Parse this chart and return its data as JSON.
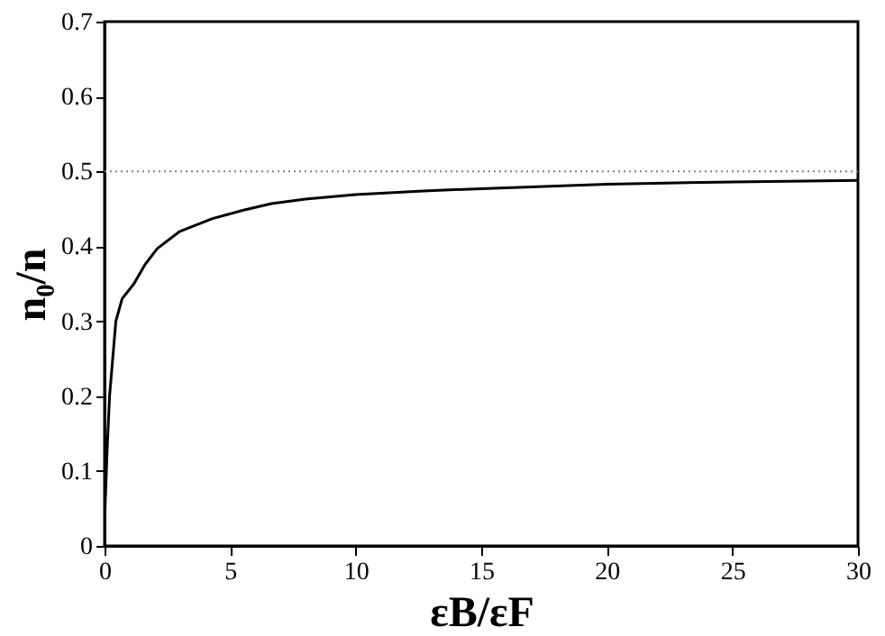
{
  "chart_data": {
    "type": "line",
    "xlabel": "εB/εF",
    "ylabel": "n₀/n",
    "x": [
      0.02,
      0.1,
      0.2,
      0.45,
      0.7,
      1.17,
      1.6,
      2.1,
      3,
      4.3,
      5.5,
      6.65,
      8,
      10,
      12.7,
      15,
      20,
      25,
      30
    ],
    "series": [
      {
        "color": "#000000",
        "values": [
          0.05,
          0.125,
          0.2,
          0.3,
          0.33,
          0.35,
          0.375,
          0.397,
          0.42,
          0.437,
          0.448,
          0.457,
          0.463,
          0.469,
          0.474,
          0.477,
          0.483,
          0.486,
          0.488
        ]
      }
    ],
    "xlim": [
      0,
      30
    ],
    "xticks": [
      0,
      5,
      10,
      15,
      20,
      25,
      30
    ],
    "ylim": [
      0,
      0.7
    ],
    "yticks": [
      {
        "value": 0,
        "label": "0"
      },
      0.1,
      0.2,
      0.3,
      0.4,
      0.5,
      0.6,
      0.7
    ],
    "ref_lines": [
      {
        "axis": "y",
        "value": 0.5,
        "color": "#808080",
        "line_style": "dotted"
      }
    ],
    "grid": false,
    "legend": false,
    "marker": "none",
    "line_style": "solid"
  }
}
